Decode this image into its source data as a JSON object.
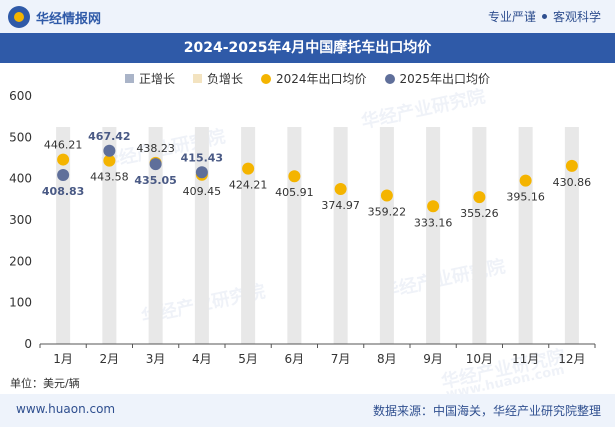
{
  "header": {
    "brand": "华经情报网",
    "slogan_left": "专业严谨",
    "slogan_right": "客观科学"
  },
  "watermark": "华经产业研究院",
  "watermark_url": "www.huaon.com",
  "chart_data": {
    "type": "bar+scatter",
    "title": "2024-2025年4月中国摩托车出口均价",
    "unit": "单位：美元/辆",
    "categories": [
      "1月",
      "2月",
      "3月",
      "4月",
      "5月",
      "6月",
      "7月",
      "8月",
      "9月",
      "10月",
      "11月",
      "12月"
    ],
    "ylim": [
      0,
      600
    ],
    "yticks": [
      0,
      100,
      200,
      300,
      400,
      500,
      600
    ],
    "legend": [
      "正增长",
      "负增长",
      "2024年出口均价",
      "2025年出口均价"
    ],
    "series": [
      {
        "name": "2024年出口均价",
        "color": "#f4b400",
        "values": [
          446.21,
          443.58,
          438.23,
          409.45,
          424.21,
          405.91,
          374.97,
          359.22,
          333.16,
          355.26,
          395.16,
          430.86
        ]
      },
      {
        "name": "2025年出口均价",
        "color": "#5f6f9a",
        "values": [
          408.83,
          467.42,
          435.05,
          415.43,
          null,
          null,
          null,
          null,
          null,
          null,
          null,
          null
        ]
      }
    ],
    "colors": {
      "bar": "#e8e8e8",
      "positive_legend": "#aab4c8",
      "negative_legend": "#f3e3c0"
    }
  },
  "footer": {
    "site": "www.huaon.com",
    "source": "数据来源：中国海关，华经产业研究院整理"
  }
}
